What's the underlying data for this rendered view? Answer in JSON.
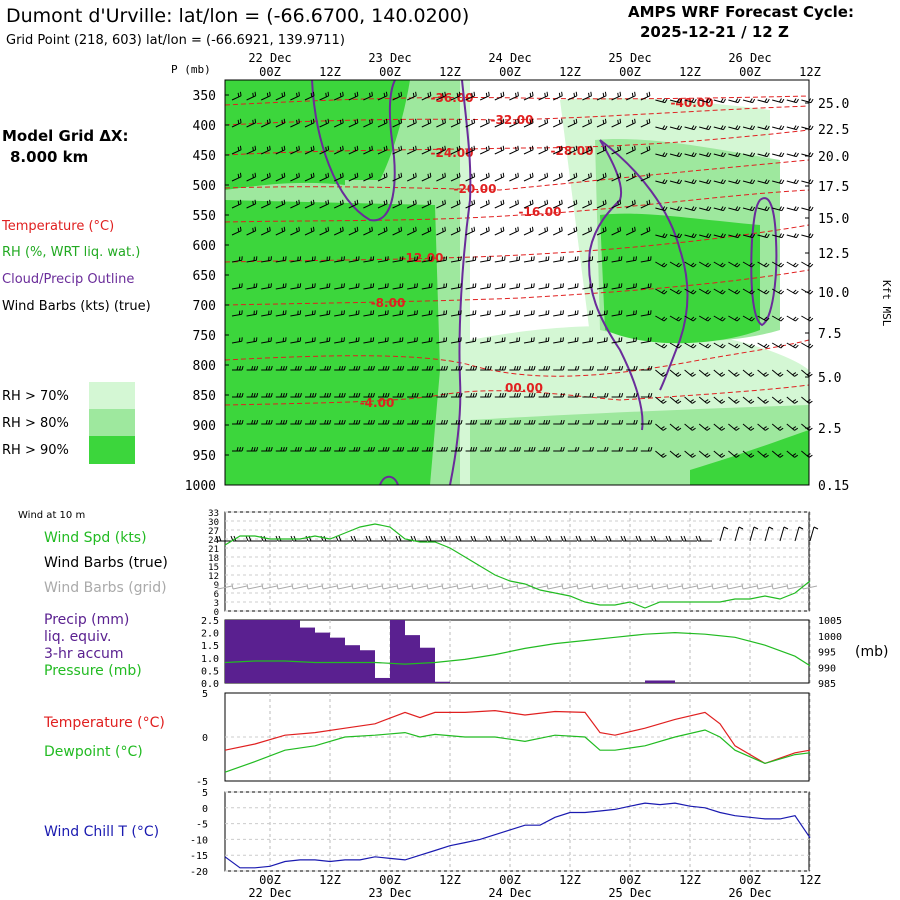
{
  "header": {
    "title": "Dumont d'Urville:  lat/lon = (-66.6700, 140.0200)",
    "subtitle": "Grid Point (218, 603) lat/lon = (-66.6921, 139.9711)",
    "forecast_title": "AMPS WRF Forecast Cycle:",
    "forecast_cycle": "2025-12-21 / 12  Z"
  },
  "left_labels": {
    "model_grid": "Model Grid ΔX:",
    "model_grid_value": "8.000 km",
    "temperature": "Temperature (°C)",
    "rh": "RH (%, WRT liq. wat.)",
    "cloud": "Cloud/Precip Outline",
    "wind_barbs": "Wind Barbs (kts) (true)",
    "legend": [
      "RH > 70%",
      "RH > 80%",
      "RH > 90%"
    ]
  },
  "colors": {
    "rh70": "#d4f7d4",
    "rh80": "#9ee89e",
    "rh90": "#3cd63c",
    "temperature": "#e02020",
    "dewpoint": "#22bb22",
    "cloud": "#6a2c9a",
    "precip": "#5a2090",
    "windchill": "#1a1ab0",
    "wind_grid": "#aaaaaa"
  },
  "time_axis": {
    "top_labels": [
      "00Z",
      "12Z",
      "00Z",
      "12Z",
      "00Z",
      "12Z",
      "00Z",
      "12Z",
      "00Z",
      "12Z"
    ],
    "day_labels": [
      "22 Dec",
      "23 Dec",
      "24 Dec",
      "25 Dec",
      "26 Dec"
    ],
    "bottom_labels": [
      "00Z",
      "12Z",
      "00Z",
      "12Z",
      "00Z",
      "12Z",
      "00Z",
      "12Z",
      "00Z",
      "12Z"
    ]
  },
  "chart_data": [
    {
      "type": "area",
      "name": "cross-section",
      "y_axis_label": "P (mb)",
      "pressure_levels": [
        350,
        400,
        450,
        500,
        550,
        600,
        650,
        700,
        750,
        800,
        850,
        900,
        950,
        1000
      ],
      "height_label": "Kft MSL",
      "height_ticks": [
        "25.0",
        "22.5",
        "20.0",
        "17.5",
        "15.0",
        "12.5",
        "10.0",
        "7.5",
        "5.0",
        "2.5",
        "0.15"
      ],
      "temperature_contour_labels": [
        "-36.00",
        "-40.00",
        "-32.00",
        "-24.00",
        "-28.00",
        "-20.00",
        "-16.00",
        "-12.00",
        "-8.00",
        "-4.00",
        "00.00"
      ]
    },
    {
      "type": "line",
      "name": "wind",
      "title": "Wind at 10 m",
      "series_labels": [
        "Wind Spd (kts)",
        "Wind Barbs (true)",
        "Wind Barbs (grid)"
      ],
      "yticks": [
        "33",
        "30",
        "27",
        "24",
        "21",
        "18",
        "15",
        "12",
        "9",
        "6",
        "3",
        "0"
      ],
      "ylim": [
        0,
        33
      ],
      "x_hours": [
        0,
        3,
        6,
        9,
        12,
        15,
        18,
        21,
        24,
        27,
        30,
        33,
        36,
        39,
        42,
        45,
        48,
        51,
        54,
        57,
        60,
        63,
        66,
        69,
        72,
        75,
        78,
        81,
        84,
        87,
        90,
        93,
        96,
        99,
        102,
        105,
        108,
        111,
        114,
        117
      ],
      "wind_speed": [
        22,
        25,
        25,
        24,
        24,
        24,
        25,
        24,
        26,
        28,
        29,
        28,
        24,
        23,
        23,
        21,
        18,
        15,
        12,
        10,
        9,
        7,
        6,
        5,
        3,
        2,
        2,
        3,
        1,
        3,
        3,
        3,
        3,
        3,
        4,
        4,
        5,
        4,
        6,
        10
      ]
    },
    {
      "type": "bar",
      "name": "precip-pressure",
      "series_labels": [
        "Precip (mm)",
        "liq. equiv.",
        "3-hr accum",
        "Pressure (mb)"
      ],
      "right_axis_label": "(mb)",
      "precip_yticks": [
        "2.5",
        "2.0",
        "1.5",
        "1.0",
        "0.5",
        "0.0"
      ],
      "precip_ylim": [
        0,
        2.5
      ],
      "pressure_yticks": [
        "1005",
        "1000",
        "995",
        "990",
        "985"
      ],
      "pressure_ylim": [
        985,
        1005
      ],
      "precip_hours": [
        0,
        3,
        6,
        9,
        12,
        15,
        18,
        21,
        24,
        27,
        30,
        33,
        36,
        39,
        42,
        45,
        48,
        51,
        54,
        57,
        60,
        63,
        66,
        69,
        72,
        75,
        78,
        81,
        84,
        87,
        90
      ],
      "precip_3hr": [
        2.5,
        2.5,
        2.5,
        2.5,
        2.5,
        2.2,
        2.0,
        1.8,
        1.5,
        1.3,
        0.2,
        2.5,
        1.9,
        1.4,
        0.05,
        0,
        0,
        0,
        0,
        0,
        0,
        0,
        0,
        0,
        0,
        0,
        0,
        0,
        0.1,
        0.1,
        0
      ],
      "pressure_hours": [
        0,
        6,
        12,
        18,
        24,
        30,
        36,
        42,
        48,
        54,
        60,
        66,
        72,
        78,
        84,
        90,
        96,
        102,
        108,
        114,
        117
      ],
      "pressure": [
        991.5,
        992.0,
        992.0,
        991.5,
        991.5,
        991.5,
        991.0,
        991.5,
        992.5,
        994.0,
        996.0,
        997.5,
        998.5,
        999.5,
        1000.5,
        1001.0,
        1000.5,
        999.5,
        997.0,
        993.5,
        990.5
      ]
    },
    {
      "type": "line",
      "name": "temperature-dewpoint",
      "series_labels": [
        "Temperature (°C)",
        "Dewpoint (°C)"
      ],
      "yticks": [
        "5",
        "0",
        "-5"
      ],
      "ylim": [
        -5,
        5
      ],
      "x_hours": [
        0,
        6,
        12,
        18,
        24,
        30,
        36,
        39,
        42,
        48,
        54,
        60,
        66,
        72,
        75,
        78,
        84,
        90,
        96,
        99,
        102,
        108,
        114,
        117
      ],
      "temperature": [
        -1.5,
        -0.8,
        0.2,
        0.5,
        1.0,
        1.5,
        2.8,
        2.2,
        2.8,
        2.8,
        3.0,
        2.5,
        2.9,
        2.8,
        0.5,
        0.2,
        1.0,
        2.0,
        2.8,
        1.5,
        -1.0,
        -3.0,
        -1.8,
        -1.5
      ],
      "dewpoint": [
        -4.0,
        -2.8,
        -1.5,
        -1.0,
        0.0,
        0.2,
        0.5,
        0.0,
        0.3,
        0.0,
        0.0,
        -0.5,
        0.2,
        0.0,
        -1.5,
        -1.5,
        -1.0,
        0.0,
        0.8,
        0.0,
        -1.5,
        -3.0,
        -2.0,
        -1.8
      ]
    },
    {
      "type": "line",
      "name": "wind-chill",
      "series_labels": [
        "Wind Chill T (°C)"
      ],
      "yticks": [
        "5",
        "0",
        "-5",
        "-10",
        "-15",
        "-20"
      ],
      "ylim": [
        -20,
        5
      ],
      "x_hours": [
        0,
        3,
        6,
        9,
        12,
        15,
        18,
        21,
        24,
        27,
        30,
        33,
        36,
        39,
        42,
        45,
        48,
        51,
        54,
        57,
        60,
        63,
        66,
        69,
        72,
        75,
        78,
        81,
        84,
        87,
        90,
        93,
        96,
        99,
        102,
        105,
        108,
        111,
        114,
        117
      ],
      "wind_chill": [
        -15.5,
        -19,
        -19,
        -18.5,
        -17,
        -16.5,
        -16.5,
        -17,
        -16.5,
        -16.5,
        -15.5,
        -16,
        -16.5,
        -15,
        -13.5,
        -12,
        -11,
        -10,
        -8.5,
        -7,
        -5.5,
        -5.5,
        -3,
        -1.5,
        -1.5,
        -1,
        -0.5,
        0.5,
        1.5,
        1,
        1.5,
        0.5,
        0,
        -1.5,
        -2.5,
        -3,
        -3.5,
        -3.5,
        -2.5,
        -9.5
      ]
    }
  ]
}
